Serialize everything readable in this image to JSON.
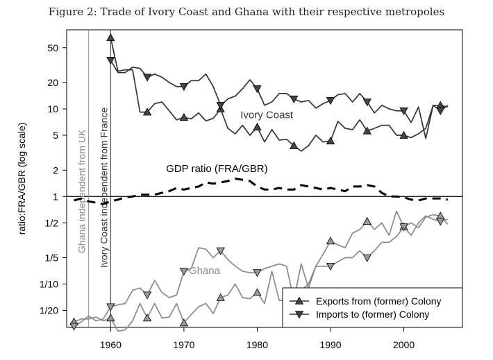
{
  "title": "Figure 2: Trade of Ivory Coast and Ghana with their respective metropoles",
  "chart_data": {
    "type": "line",
    "title": "Figure 2: Trade of Ivory Coast and Ghana with their respective metropoles",
    "ylabel": "ratio:FRA/GBR (log scale)",
    "xlabel": "",
    "y_scale": "log",
    "xlim": [
      1954,
      2008
    ],
    "ylim": [
      0.032,
      80
    ],
    "x_ticks": [
      1960,
      1970,
      1980,
      1990,
      2000
    ],
    "y_ticks": [
      {
        "value": 50,
        "label": "50"
      },
      {
        "value": 20,
        "label": "20"
      },
      {
        "value": 10,
        "label": "10"
      },
      {
        "value": 5,
        "label": "5"
      },
      {
        "value": 2,
        "label": "2"
      },
      {
        "value": 1,
        "label": "1"
      },
      {
        "value": 0.5,
        "label": "1/2"
      },
      {
        "value": 0.2,
        "label": "1/5"
      },
      {
        "value": 0.1,
        "label": "1/10"
      },
      {
        "value": 0.05,
        "label": "1/20"
      }
    ],
    "reference_line": 1,
    "grid": false,
    "legend_position": "bottom-right",
    "legend": [
      {
        "label": "Exports from (former) Colony",
        "marker": "triangle-up"
      },
      {
        "label": "Imports to (former) Colony",
        "marker": "triangle-down"
      }
    ],
    "events": [
      {
        "x": 1957,
        "label": "Ghana independent from UK",
        "color": "#8a8a8a"
      },
      {
        "x": 1960,
        "label": "Ivory Coast independent from France",
        "color": "#333333"
      }
    ],
    "annotations": [
      {
        "text": "Ivory Coast",
        "x": 1981.3,
        "y": 7.8,
        "color": "#333333"
      },
      {
        "text": "GDP ratio (FRA/GBR)",
        "x": 1974.5,
        "y": 1.9,
        "color": "#000000"
      },
      {
        "text": "Ghana",
        "x": 1972.8,
        "y": 0.13,
        "color": "#8a8a8a"
      }
    ],
    "series": [
      {
        "key": "ivory_exports",
        "group": "Ivory Coast",
        "marker": "triangle-up",
        "color": "#333333",
        "x": [
          1960,
          1961,
          1962,
          1963,
          1964,
          1965,
          1966,
          1967,
          1968,
          1969,
          1970,
          1971,
          1972,
          1973,
          1974,
          1975,
          1976,
          1977,
          1978,
          1979,
          1980,
          1981,
          1982,
          1983,
          1984,
          1985,
          1986,
          1987,
          1988,
          1989,
          1990,
          1991,
          1992,
          1993,
          1994,
          1995,
          1996,
          1997,
          1998,
          1999,
          2000,
          2001,
          2002,
          2003,
          2004,
          2005,
          2006
        ],
        "y": [
          65,
          27,
          28,
          28,
          9.2,
          9.2,
          11.5,
          12,
          9.5,
          7.5,
          8,
          7.7,
          9,
          7.3,
          7.8,
          10,
          6,
          5.2,
          6.5,
          5,
          6.2,
          4.2,
          5.8,
          4.4,
          4.5,
          3.8,
          3.3,
          3.8,
          5,
          4.2,
          4.3,
          7.2,
          6,
          5.8,
          7.5,
          5.6,
          6,
          6.5,
          6.5,
          5,
          5,
          4.7,
          5.2,
          6,
          11,
          11,
          10.5
        ]
      },
      {
        "key": "ivory_imports",
        "group": "Ivory Coast",
        "marker": "triangle-down",
        "color": "#333333",
        "x": [
          1960,
          1961,
          1962,
          1963,
          1964,
          1965,
          1966,
          1967,
          1968,
          1969,
          1970,
          1971,
          1972,
          1973,
          1974,
          1975,
          1976,
          1977,
          1978,
          1979,
          1980,
          1981,
          1982,
          1983,
          1984,
          1985,
          1986,
          1987,
          1988,
          1989,
          1990,
          1991,
          1992,
          1993,
          1994,
          1995,
          1996,
          1997,
          1998,
          1999,
          2000,
          2001,
          2002,
          2003,
          2004,
          2005,
          2006
        ],
        "y": [
          36,
          26,
          26,
          30,
          29,
          23,
          25,
          23,
          20,
          18,
          18,
          21,
          21,
          25,
          18,
          11,
          13,
          14,
          17,
          21.5,
          17,
          11,
          12,
          15,
          15,
          13,
          12,
          12.5,
          10.2,
          11.5,
          12.5,
          14.5,
          15,
          12,
          15,
          12,
          9,
          11,
          10,
          9.5,
          9.5,
          7,
          10.5,
          4.6,
          11,
          9.5,
          11
        ]
      },
      {
        "key": "ghana_exports",
        "group": "Ghana",
        "marker": "triangle-up",
        "color": "#8a8a8a",
        "x": [
          1955,
          1956,
          1957,
          1958,
          1959,
          1960,
          1961,
          1962,
          1963,
          1964,
          1965,
          1966,
          1967,
          1968,
          1969,
          1970,
          1971,
          1972,
          1973,
          1974,
          1975,
          1976,
          1977,
          1978,
          1979,
          1980,
          1981,
          1982,
          1983,
          1984,
          1985,
          1986,
          1987,
          1988,
          1989,
          1990,
          1991,
          1992,
          1993,
          1994,
          1995,
          1996,
          1997,
          1998,
          1999,
          2000,
          2001,
          2002,
          2003,
          2004,
          2005,
          2006
        ],
        "y": [
          0.037,
          0.04,
          0.04,
          0.042,
          0.038,
          0.041,
          0.029,
          0.03,
          0.038,
          0.06,
          0.041,
          0.06,
          0.041,
          0.042,
          0.06,
          0.036,
          0.045,
          0.055,
          0.06,
          0.046,
          0.07,
          0.075,
          0.1,
          0.07,
          0.068,
          0.08,
          0.06,
          0.14,
          0.065,
          0.065,
          0.065,
          0.17,
          0.09,
          0.16,
          0.22,
          0.31,
          0.28,
          0.26,
          0.38,
          0.42,
          0.52,
          0.42,
          0.5,
          0.36,
          0.68,
          0.45,
          0.5,
          0.44,
          0.58,
          0.62,
          0.6,
          0.48
        ]
      },
      {
        "key": "ghana_imports",
        "group": "Ghana",
        "marker": "triangle-down",
        "color": "#8a8a8a",
        "x": [
          1955,
          1956,
          1957,
          1958,
          1959,
          1960,
          1961,
          1962,
          1963,
          1964,
          1965,
          1966,
          1967,
          1968,
          1969,
          1970,
          1971,
          1972,
          1973,
          1974,
          1975,
          1976,
          1977,
          1978,
          1979,
          1980,
          1981,
          1982,
          1983,
          1984,
          1985,
          1986,
          1987,
          1988,
          1989,
          1990,
          1991,
          1992,
          1993,
          1994,
          1995,
          1996,
          1997,
          1998,
          1999,
          2000,
          2001,
          2002,
          2003,
          2004,
          2005,
          2006
        ],
        "y": [
          0.033,
          0.037,
          0.043,
          0.038,
          0.04,
          0.055,
          0.058,
          0.06,
          0.085,
          0.09,
          0.075,
          0.11,
          0.08,
          0.07,
          0.075,
          0.14,
          0.15,
          0.26,
          0.25,
          0.2,
          0.24,
          0.19,
          0.16,
          0.14,
          0.135,
          0.135,
          0.15,
          0.16,
          0.17,
          0.16,
          0.065,
          0.085,
          0.1,
          0.16,
          0.16,
          0.16,
          0.18,
          0.2,
          0.2,
          0.24,
          0.2,
          0.24,
          0.3,
          0.3,
          0.35,
          0.45,
          0.36,
          0.5,
          0.6,
          0.55,
          0.52,
          0.55
        ]
      },
      {
        "key": "gdp_ratio",
        "group": "GDP ratio (FRA/GBR)",
        "marker": "none",
        "color": "#000000",
        "dashed": true,
        "x": [
          1955,
          1956,
          1957,
          1958,
          1959,
          1960,
          1961,
          1962,
          1963,
          1964,
          1965,
          1966,
          1967,
          1968,
          1969,
          1970,
          1971,
          1972,
          1973,
          1974,
          1975,
          1976,
          1977,
          1978,
          1979,
          1980,
          1981,
          1982,
          1983,
          1984,
          1985,
          1986,
          1987,
          1988,
          1989,
          1990,
          1991,
          1992,
          1993,
          1994,
          1995,
          1996,
          1997,
          1998,
          1999,
          2000,
          2001,
          2002,
          2003,
          2004,
          2005,
          2006
        ],
        "y": [
          0.9,
          0.95,
          0.88,
          0.85,
          0.82,
          0.88,
          0.92,
          0.98,
          1.0,
          1.05,
          1.05,
          1.05,
          1.1,
          1.15,
          1.25,
          1.2,
          1.25,
          1.3,
          1.45,
          1.4,
          1.45,
          1.5,
          1.6,
          1.55,
          1.5,
          1.3,
          1.2,
          1.2,
          1.25,
          1.2,
          1.2,
          1.35,
          1.3,
          1.25,
          1.2,
          1.25,
          1.2,
          1.15,
          1.3,
          1.3,
          1.35,
          1.3,
          1.1,
          1.0,
          1.0,
          0.98,
          0.92,
          0.9,
          0.95,
          0.95,
          0.95,
          0.92
        ]
      }
    ]
  }
}
